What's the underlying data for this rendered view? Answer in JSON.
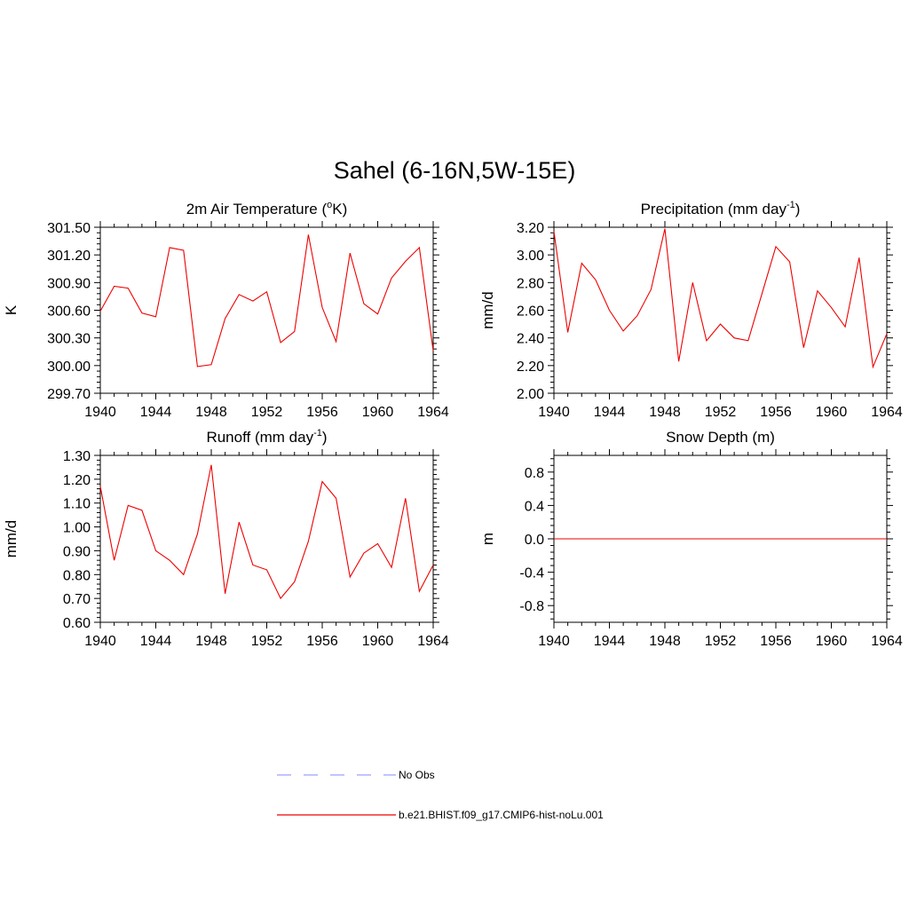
{
  "title": "Sahel (6-16N,5W-15E)",
  "colors": {
    "model": "#ee0000",
    "obs": "#9aa0ff",
    "axis": "#000000"
  },
  "legend": [
    {
      "label": "No Obs",
      "style": "dashed",
      "color": "#9aa0ff"
    },
    {
      "label": "b.e21.BHIST.f09_g17.CMIP6-hist-noLu.001",
      "style": "solid",
      "color": "#ee0000"
    }
  ],
  "chart_data": [
    {
      "type": "line",
      "title": "2m Air Temperature (",
      "title_sup": "o",
      "title_after": "K)",
      "ylabel": "K",
      "xlim": [
        1940,
        1964
      ],
      "ylim": [
        299.7,
        301.5
      ],
      "x_ticks": [
        "1940",
        "1944",
        "1948",
        "1952",
        "1956",
        "1960",
        "1964"
      ],
      "y_ticks": [
        "299.70",
        "300.00",
        "300.30",
        "300.60",
        "300.90",
        "301.20",
        "301.50"
      ],
      "x": [
        1940,
        1941,
        1942,
        1943,
        1944,
        1945,
        1946,
        1947,
        1948,
        1949,
        1950,
        1951,
        1952,
        1953,
        1954,
        1955,
        1956,
        1957,
        1958,
        1959,
        1960,
        1961,
        1962,
        1963,
        1964
      ],
      "series": [
        {
          "name": "b.e21.BHIST.f09_g17.CMIP6-hist-noLu.001",
          "values": [
            300.59,
            300.86,
            300.84,
            300.57,
            300.53,
            301.28,
            301.25,
            299.99,
            300.01,
            300.51,
            300.77,
            300.7,
            300.8,
            300.25,
            300.37,
            301.42,
            300.63,
            300.26,
            301.22,
            300.67,
            300.56,
            300.95,
            301.13,
            301.28,
            300.16
          ]
        }
      ]
    },
    {
      "type": "line",
      "title": "Precipitation (mm day",
      "title_sup": "-1",
      "title_after": ")",
      "ylabel": "mm/d",
      "xlim": [
        1940,
        1964
      ],
      "ylim": [
        2.0,
        3.2
      ],
      "x_ticks": [
        "1940",
        "1944",
        "1948",
        "1952",
        "1956",
        "1960",
        "1964"
      ],
      "y_ticks": [
        "2.00",
        "2.20",
        "2.40",
        "2.60",
        "2.80",
        "3.00",
        "3.20"
      ],
      "x": [
        1940,
        1941,
        1942,
        1943,
        1944,
        1945,
        1946,
        1947,
        1948,
        1949,
        1950,
        1951,
        1952,
        1953,
        1954,
        1955,
        1956,
        1957,
        1958,
        1959,
        1960,
        1961,
        1962,
        1963,
        1964
      ],
      "series": [
        {
          "name": "b.e21.BHIST.f09_g17.CMIP6-hist-noLu.001",
          "values": [
            3.17,
            2.44,
            2.94,
            2.82,
            2.6,
            2.45,
            2.56,
            2.75,
            3.19,
            2.23,
            2.8,
            2.38,
            2.5,
            2.4,
            2.38,
            2.72,
            3.06,
            2.95,
            2.33,
            2.74,
            2.62,
            2.48,
            2.98,
            2.19,
            2.43
          ]
        }
      ]
    },
    {
      "type": "line",
      "title": "Runoff (mm day",
      "title_sup": "-1",
      "title_after": ")",
      "ylabel": "mm/d",
      "xlim": [
        1940,
        1964
      ],
      "ylim": [
        0.6,
        1.3
      ],
      "x_ticks": [
        "1940",
        "1944",
        "1948",
        "1952",
        "1956",
        "1960",
        "1964"
      ],
      "y_ticks": [
        "0.60",
        "0.70",
        "0.80",
        "0.90",
        "1.00",
        "1.10",
        "1.20",
        "1.30"
      ],
      "x": [
        1940,
        1941,
        1942,
        1943,
        1944,
        1945,
        1946,
        1947,
        1948,
        1949,
        1950,
        1951,
        1952,
        1953,
        1954,
        1955,
        1956,
        1957,
        1958,
        1959,
        1960,
        1961,
        1962,
        1963,
        1964
      ],
      "series": [
        {
          "name": "b.e21.BHIST.f09_g17.CMIP6-hist-noLu.001",
          "values": [
            1.17,
            0.86,
            1.09,
            1.07,
            0.9,
            0.86,
            0.8,
            0.97,
            1.26,
            0.72,
            1.02,
            0.84,
            0.82,
            0.7,
            0.77,
            0.94,
            1.19,
            1.12,
            0.79,
            0.89,
            0.93,
            0.83,
            1.12,
            0.73,
            0.84
          ]
        }
      ]
    },
    {
      "type": "line",
      "title": "Snow Depth (m)",
      "title_sup": "",
      "title_after": "",
      "ylabel": "m",
      "xlim": [
        1940,
        1964
      ],
      "ylim": [
        -1.0,
        1.0
      ],
      "x_ticks": [
        "1940",
        "1944",
        "1948",
        "1952",
        "1956",
        "1960",
        "1964"
      ],
      "y_ticks": [
        "-0.8",
        "-0.4",
        "0.0",
        "0.4",
        "0.8"
      ],
      "x": [
        1940,
        1941,
        1942,
        1943,
        1944,
        1945,
        1946,
        1947,
        1948,
        1949,
        1950,
        1951,
        1952,
        1953,
        1954,
        1955,
        1956,
        1957,
        1958,
        1959,
        1960,
        1961,
        1962,
        1963,
        1964
      ],
      "series": [
        {
          "name": "b.e21.BHIST.f09_g17.CMIP6-hist-noLu.001",
          "values": [
            0,
            0,
            0,
            0,
            0,
            0,
            0,
            0,
            0,
            0,
            0,
            0,
            0,
            0,
            0,
            0,
            0,
            0,
            0,
            0,
            0,
            0,
            0,
            0,
            0
          ]
        }
      ]
    }
  ]
}
